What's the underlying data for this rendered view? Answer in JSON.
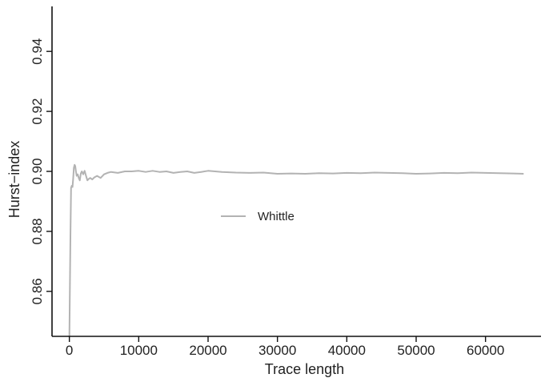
{
  "chart_data": {
    "type": "line",
    "xlabel": "Trace length",
    "ylabel": "Hurst−index",
    "xlim": [
      -2500,
      68000
    ],
    "ylim": [
      0.845,
      0.955
    ],
    "xticks": [
      0,
      10000,
      20000,
      30000,
      40000,
      50000,
      60000
    ],
    "xtick_labels": [
      "0",
      "10000",
      "20000",
      "30000",
      "40000",
      "50000",
      "60000"
    ],
    "yticks": [
      0.86,
      0.88,
      0.9,
      0.92,
      0.94
    ],
    "ytick_labels": [
      "0.86",
      "0.88",
      "0.90",
      "0.92",
      "0.94"
    ],
    "grid": false,
    "legend_position": "center",
    "series": [
      {
        "name": "Whittle",
        "color": "#b3b3b3",
        "x": [
          0,
          150,
          250,
          350,
          450,
          550,
          650,
          750,
          850,
          950,
          1050,
          1200,
          1350,
          1500,
          1650,
          1800,
          2000,
          2200,
          2400,
          2600,
          2800,
          3000,
          3300,
          3600,
          4000,
          4500,
          5000,
          5500,
          6000,
          7000,
          8000,
          9000,
          10000,
          11000,
          12000,
          13000,
          14000,
          15000,
          16000,
          17000,
          18000,
          19000,
          20000,
          22000,
          24000,
          26000,
          28000,
          30000,
          32000,
          34000,
          36000,
          38000,
          40000,
          42000,
          44000,
          46000,
          48000,
          50000,
          52000,
          54000,
          56000,
          58000,
          60000,
          62000,
          64000,
          65500
        ],
        "values": [
          0.845,
          0.878,
          0.8945,
          0.8952,
          0.8948,
          0.8975,
          0.9012,
          0.9022,
          0.9018,
          0.9,
          0.8985,
          0.899,
          0.8978,
          0.897,
          0.8993,
          0.9,
          0.899,
          0.9002,
          0.8985,
          0.897,
          0.8975,
          0.8978,
          0.8973,
          0.898,
          0.8985,
          0.8978,
          0.899,
          0.8995,
          0.8998,
          0.8995,
          0.9,
          0.9,
          0.9002,
          0.8998,
          0.9002,
          0.8998,
          0.9,
          0.8995,
          0.8998,
          0.9,
          0.8995,
          0.8998,
          0.9002,
          0.8998,
          0.8996,
          0.8995,
          0.8996,
          0.8992,
          0.8993,
          0.8992,
          0.8994,
          0.8993,
          0.8995,
          0.8994,
          0.8996,
          0.8995,
          0.8994,
          0.8992,
          0.8993,
          0.8995,
          0.8994,
          0.8996,
          0.8995,
          0.8994,
          0.8993,
          0.8992
        ]
      }
    ]
  }
}
